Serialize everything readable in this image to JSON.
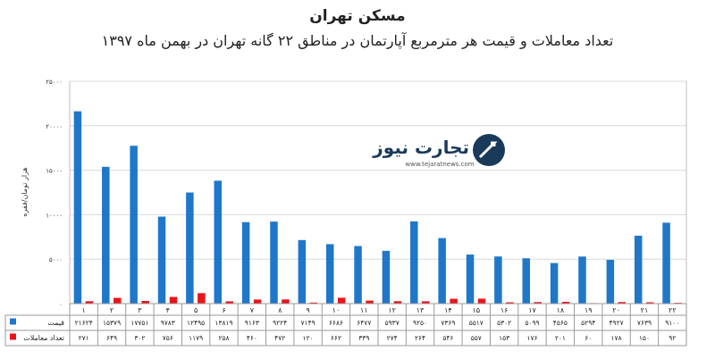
{
  "header": {
    "title": "مسکن تهران",
    "subtitle": "تعداد معاملات و قیمت هر مترمربع آپارتمان در مناطق ۲۲ گانه تهران در بهمن ماه ۱۳۹۷"
  },
  "logo": {
    "name": "تجارت نیوز",
    "url": "www.tejaratnews.com"
  },
  "colors": {
    "price": "#1f77c9",
    "transactions": "#e8141c"
  },
  "chart_data": {
    "type": "bar",
    "categories": [
      "۱",
      "۲",
      "۳",
      "۴",
      "۵",
      "۶",
      "۷",
      "۸",
      "۹",
      "۱۰",
      "۱۱",
      "۱۲",
      "۱۳",
      "۱۴",
      "۱۵",
      "۱۶",
      "۱۷",
      "۱۸",
      "۱۹",
      "۲۰",
      "۲۱",
      "۲۲"
    ],
    "series": [
      {
        "name": "قیمت",
        "values": [
          21624,
          15379,
          17751,
          9783,
          12495,
          13819,
          9163,
          9224,
          7149,
          6686,
          6477,
          5937,
          9250,
          7369,
          5517,
          5302,
          5099,
          4565,
          5294,
          4927,
          7639,
          9100
        ]
      },
      {
        "name": "تعداد معاملات",
        "values": [
          271,
          649,
          302,
          756,
          1179,
          258,
          460,
          472,
          120,
          662,
          339,
          274,
          264,
          546,
          557,
          153,
          176,
          201,
          60,
          178,
          150,
          92
        ]
      }
    ],
    "series_display": [
      [
        "۲۱۶۲۴",
        "۱۵۳۷۹",
        "۱۷۷۵۱",
        "۹۷۸۳",
        "۱۲۴۹۵",
        "۱۳۸۱۹",
        "۹۱۶۳",
        "۹۲۲۴",
        "۷۱۴۹",
        "۶۶۸۶",
        "۶۴۷۷",
        "۵۹۳۷",
        "۹۲۵۰",
        "۷۳۶۹",
        "۵۵۱۷",
        "۵۳۰۲",
        "۵۰۹۹",
        "۴۵۶۵",
        "۵۲۹۴",
        "۴۹۲۷",
        "۷۶۳۹",
        "۹۱۰۰"
      ],
      [
        "۲۷۱",
        "۶۴۹",
        "۳۰۲",
        "۷۵۶",
        "۱۱۷۹",
        "۲۵۸",
        "۴۶۰",
        "۴۷۲",
        "۱۲۰",
        "۶۶۲",
        "۳۳۹",
        "۲۷۴",
        "۲۶۴",
        "۵۴۶",
        "۵۵۷",
        "۱۵۳",
        "۱۷۶",
        "۲۰۱",
        "۶۰",
        "۱۷۸",
        "۱۵۰",
        "۹۲"
      ]
    ],
    "ylim": [
      0,
      25000
    ],
    "yticks": [
      0,
      5000,
      10000,
      15000,
      20000,
      25000
    ],
    "ytick_labels": [
      "۰",
      "۵۰۰۰",
      "۱۰۰۰۰",
      "۱۵۰۰۰",
      "۲۰۰۰۰",
      "۲۵۰۰۰"
    ],
    "ylabel": "هزار تومان/فقره",
    "grid": true,
    "legend": "data-table"
  }
}
